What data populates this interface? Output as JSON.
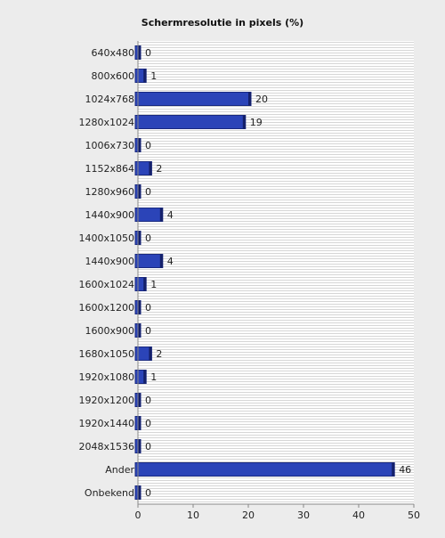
{
  "chart_data": {
    "type": "bar",
    "orientation": "horizontal",
    "title": "Schermresolutie in pixels (%)",
    "xlabel": "",
    "ylabel": "",
    "xlim": [
      0,
      50
    ],
    "x_ticks": [
      0,
      10,
      20,
      30,
      40,
      50
    ],
    "grid": "horizontal striped background",
    "categories": [
      "640x480",
      "800x600",
      "1024x768",
      "1280x1024",
      "1006x730",
      "1152x864",
      "1280x960",
      "1440x900",
      "1400x1050",
      "1440x900",
      "1600x1024",
      "1600x1200",
      "1600x900",
      "1680x1050",
      "1920x1080",
      "1920x1200",
      "1920x1440",
      "2048x1536",
      "Ander",
      "Onbekend"
    ],
    "values": [
      0,
      1,
      20,
      19,
      0,
      2,
      0,
      4,
      0,
      4,
      1,
      0,
      0,
      2,
      1,
      0,
      0,
      0,
      46,
      0
    ],
    "bar_color": "#2b44b8",
    "bar_edge_color": "#1a2a80"
  }
}
